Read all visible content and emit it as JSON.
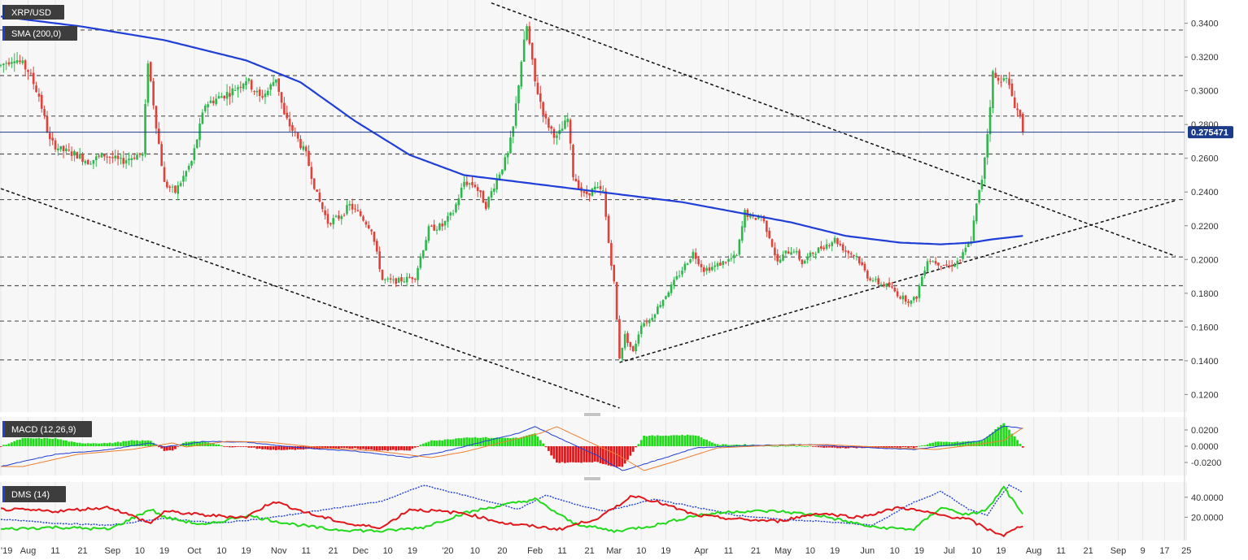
{
  "colors": {
    "up": "#2db84c",
    "down": "#e0413a",
    "sma": "#1f3fd6",
    "macd_line": "#1f3fd6",
    "signal_line": "#f07d2c",
    "dmi_plus": "#22d91b",
    "dmi_minus": "#e0171b",
    "adx": "#1f3fd6",
    "price_marker": "#1a3a8a",
    "grid_panel": "#f7f7f7"
  },
  "chart_data": [
    {
      "type": "candlestick",
      "title": "XRP/USD",
      "indicator_label": "SMA (200,0)",
      "ylim": [
        0.112,
        0.348
      ],
      "yticks": [
        "0.3400",
        "0.3200",
        "0.3000",
        "0.2800",
        "0.2600",
        "0.2400",
        "0.2200",
        "0.2000",
        "0.1800",
        "0.1600",
        "0.1400",
        "0.1200"
      ],
      "current_price": 0.275471,
      "current_price_label": "0.275471",
      "horizontal_levels": [
        0.336,
        0.309,
        0.285,
        0.2625,
        0.2355,
        0.2015,
        0.1845,
        0.1635,
        0.1405
      ],
      "xticks": [
        "'19",
        "Aug",
        "11",
        "21",
        "Sep",
        "10",
        "19",
        "Oct",
        "10",
        "19",
        "Nov",
        "11",
        "21",
        "Dec",
        "10",
        "19",
        "'20",
        "10",
        "20",
        "Feb",
        "11",
        "21",
        "Mar",
        "10",
        "19",
        "Apr",
        "11",
        "21",
        "May",
        "10",
        "19",
        "Jun",
        "10",
        "19",
        "Jul",
        "10",
        "19",
        "Aug",
        "11",
        "21",
        "Sep",
        "9",
        "17",
        "25"
      ],
      "xtick_days": [
        0,
        10,
        20,
        30,
        41,
        51,
        60,
        71,
        81,
        90,
        102,
        112,
        122,
        132,
        142,
        151,
        164,
        174,
        184,
        196,
        206,
        216,
        225,
        235,
        244,
        257,
        267,
        277,
        287,
        297,
        306,
        318,
        328,
        337,
        348,
        358,
        367,
        379,
        389,
        399,
        410,
        419,
        427,
        435
      ],
      "anchors": [
        [
          0,
          0.315
        ],
        [
          5,
          0.32
        ],
        [
          10,
          0.312
        ],
        [
          14,
          0.297
        ],
        [
          18,
          0.27
        ],
        [
          22,
          0.265
        ],
        [
          28,
          0.262
        ],
        [
          32,
          0.258
        ],
        [
          38,
          0.262
        ],
        [
          44,
          0.258
        ],
        [
          50,
          0.262
        ],
        [
          52,
          0.262
        ],
        [
          54,
          0.318
        ],
        [
          57,
          0.28
        ],
        [
          60,
          0.245
        ],
        [
          64,
          0.24
        ],
        [
          70,
          0.258
        ],
        [
          75,
          0.292
        ],
        [
          80,
          0.296
        ],
        [
          85,
          0.3
        ],
        [
          90,
          0.307
        ],
        [
          95,
          0.296
        ],
        [
          98,
          0.3
        ],
        [
          101,
          0.308
        ],
        [
          104,
          0.285
        ],
        [
          108,
          0.274
        ],
        [
          112,
          0.262
        ],
        [
          116,
          0.238
        ],
        [
          120,
          0.222
        ],
        [
          124,
          0.225
        ],
        [
          128,
          0.232
        ],
        [
          132,
          0.226
        ],
        [
          136,
          0.218
        ],
        [
          140,
          0.188
        ],
        [
          144,
          0.187
        ],
        [
          148,
          0.188
        ],
        [
          152,
          0.19
        ],
        [
          157,
          0.218
        ],
        [
          162,
          0.22
        ],
        [
          166,
          0.228
        ],
        [
          170,
          0.246
        ],
        [
          174,
          0.244
        ],
        [
          178,
          0.232
        ],
        [
          182,
          0.248
        ],
        [
          186,
          0.262
        ],
        [
          188,
          0.278
        ],
        [
          191,
          0.318
        ],
        [
          193,
          0.338
        ],
        [
          196,
          0.305
        ],
        [
          200,
          0.282
        ],
        [
          204,
          0.272
        ],
        [
          208,
          0.283
        ],
        [
          210,
          0.25
        ],
        [
          214,
          0.238
        ],
        [
          218,
          0.242
        ],
        [
          221,
          0.24
        ],
        [
          223,
          0.21
        ],
        [
          225,
          0.186
        ],
        [
          227,
          0.142
        ],
        [
          229,
          0.155
        ],
        [
          232,
          0.145
        ],
        [
          235,
          0.162
        ],
        [
          238,
          0.164
        ],
        [
          242,
          0.174
        ],
        [
          246,
          0.184
        ],
        [
          250,
          0.194
        ],
        [
          254,
          0.204
        ],
        [
          258,
          0.194
        ],
        [
          262,
          0.196
        ],
        [
          266,
          0.199
        ],
        [
          270,
          0.202
        ],
        [
          273,
          0.228
        ],
        [
          276,
          0.224
        ],
        [
          279,
          0.226
        ],
        [
          282,
          0.214
        ],
        [
          285,
          0.198
        ],
        [
          288,
          0.204
        ],
        [
          291,
          0.206
        ],
        [
          294,
          0.198
        ],
        [
          298,
          0.204
        ],
        [
          302,
          0.208
        ],
        [
          306,
          0.212
        ],
        [
          310,
          0.205
        ],
        [
          314,
          0.202
        ],
        [
          318,
          0.19
        ],
        [
          322,
          0.186
        ],
        [
          326,
          0.184
        ],
        [
          330,
          0.178
        ],
        [
          334,
          0.175
        ],
        [
          336,
          0.178
        ],
        [
          338,
          0.19
        ],
        [
          340,
          0.2
        ],
        [
          344,
          0.198
        ],
        [
          348,
          0.196
        ],
        [
          352,
          0.2
        ],
        [
          354,
          0.206
        ],
        [
          356,
          0.212
        ],
        [
          358,
          0.232
        ],
        [
          360,
          0.248
        ],
        [
          362,
          0.275
        ],
        [
          364,
          0.31
        ],
        [
          366,
          0.305
        ],
        [
          368,
          0.31
        ],
        [
          370,
          0.302
        ],
        [
          372,
          0.292
        ],
        [
          374,
          0.285
        ],
        [
          375,
          0.2755
        ]
      ],
      "sma_anchors": [
        [
          0,
          0.344
        ],
        [
          30,
          0.338
        ],
        [
          60,
          0.33
        ],
        [
          90,
          0.318
        ],
        [
          110,
          0.305
        ],
        [
          130,
          0.282
        ],
        [
          150,
          0.262
        ],
        [
          170,
          0.25
        ],
        [
          190,
          0.246
        ],
        [
          210,
          0.242
        ],
        [
          230,
          0.238
        ],
        [
          250,
          0.234
        ],
        [
          270,
          0.228
        ],
        [
          290,
          0.222
        ],
        [
          310,
          0.214
        ],
        [
          330,
          0.21
        ],
        [
          345,
          0.209
        ],
        [
          356,
          0.21
        ],
        [
          364,
          0.212
        ],
        [
          375,
          0.214
        ]
      ],
      "trendlines": [
        {
          "from": [
            0,
            0.242
          ],
          "to": [
            227,
            0.112
          ]
        },
        {
          "from": [
            180,
            0.352
          ],
          "to": [
            431,
            0.202
          ]
        },
        {
          "from": [
            227,
            0.139
          ],
          "to": [
            431,
            0.235
          ]
        }
      ]
    },
    {
      "type": "macd",
      "title": "MACD (12,26,9)",
      "ylim": [
        -0.032,
        0.032
      ],
      "yticks": [
        "0.0200",
        "0.0000",
        "-0.0200"
      ],
      "macd_anchors": [
        [
          0,
          -0.025
        ],
        [
          20,
          -0.01
        ],
        [
          40,
          -0.004
        ],
        [
          55,
          0.004
        ],
        [
          60,
          -0.001
        ],
        [
          75,
          0.006
        ],
        [
          90,
          0.005
        ],
        [
          110,
          -0.002
        ],
        [
          130,
          -0.006
        ],
        [
          150,
          -0.014
        ],
        [
          162,
          -0.007
        ],
        [
          175,
          0.004
        ],
        [
          190,
          0.016
        ],
        [
          196,
          0.024
        ],
        [
          210,
          0.002
        ],
        [
          218,
          -0.01
        ],
        [
          228,
          -0.03
        ],
        [
          240,
          -0.018
        ],
        [
          255,
          -0.002
        ],
        [
          275,
          0.001
        ],
        [
          295,
          0.002
        ],
        [
          320,
          -0.002
        ],
        [
          335,
          -0.004
        ],
        [
          350,
          0.002
        ],
        [
          360,
          0.007
        ],
        [
          368,
          0.025
        ],
        [
          375,
          0.022
        ]
      ],
      "signal_lag": 4
    },
    {
      "type": "dmi",
      "title": "DMS (14)",
      "ylim": [
        0,
        52
      ],
      "yticks": [
        "40.0000",
        "20.0000"
      ],
      "adx_anchors": [
        [
          0,
          18
        ],
        [
          20,
          14
        ],
        [
          40,
          12
        ],
        [
          60,
          19
        ],
        [
          80,
          14
        ],
        [
          100,
          20
        ],
        [
          120,
          28
        ],
        [
          140,
          36
        ],
        [
          155,
          52
        ],
        [
          170,
          42
        ],
        [
          190,
          28
        ],
        [
          200,
          42
        ],
        [
          212,
          32
        ],
        [
          222,
          26
        ],
        [
          240,
          38
        ],
        [
          255,
          30
        ],
        [
          270,
          22
        ],
        [
          285,
          18
        ],
        [
          300,
          16
        ],
        [
          320,
          12
        ],
        [
          335,
          35
        ],
        [
          345,
          46
        ],
        [
          355,
          28
        ],
        [
          362,
          22
        ],
        [
          366,
          38
        ],
        [
          370,
          52
        ],
        [
          375,
          45
        ]
      ],
      "plus_anchors": [
        [
          0,
          8
        ],
        [
          20,
          10
        ],
        [
          40,
          8
        ],
        [
          55,
          28
        ],
        [
          60,
          20
        ],
        [
          75,
          12
        ],
        [
          90,
          22
        ],
        [
          105,
          14
        ],
        [
          120,
          8
        ],
        [
          140,
          6
        ],
        [
          155,
          10
        ],
        [
          170,
          24
        ],
        [
          180,
          30
        ],
        [
          196,
          38
        ],
        [
          210,
          14
        ],
        [
          225,
          6
        ],
        [
          240,
          12
        ],
        [
          255,
          22
        ],
        [
          270,
          26
        ],
        [
          285,
          26
        ],
        [
          300,
          22
        ],
        [
          320,
          10
        ],
        [
          335,
          8
        ],
        [
          345,
          30
        ],
        [
          355,
          22
        ],
        [
          362,
          28
        ],
        [
          368,
          50
        ],
        [
          375,
          22
        ]
      ],
      "minus_anchors": [
        [
          0,
          28
        ],
        [
          20,
          26
        ],
        [
          40,
          30
        ],
        [
          55,
          14
        ],
        [
          60,
          26
        ],
        [
          75,
          22
        ],
        [
          90,
          20
        ],
        [
          100,
          36
        ],
        [
          115,
          22
        ],
        [
          130,
          12
        ],
        [
          140,
          10
        ],
        [
          150,
          28
        ],
        [
          170,
          24
        ],
        [
          185,
          14
        ],
        [
          205,
          8
        ],
        [
          220,
          20
        ],
        [
          232,
          42
        ],
        [
          240,
          36
        ],
        [
          255,
          22
        ],
        [
          270,
          18
        ],
        [
          285,
          16
        ],
        [
          300,
          24
        ],
        [
          315,
          20
        ],
        [
          330,
          30
        ],
        [
          345,
          22
        ],
        [
          355,
          18
        ],
        [
          362,
          8
        ],
        [
          368,
          2
        ],
        [
          375,
          12
        ]
      ]
    }
  ],
  "labels": {
    "price_title": "XRP/USD",
    "sma": "SMA (200,0)",
    "macd": "MACD (12,26,9)",
    "dms": "DMS (14)",
    "current_price": "0.275471"
  }
}
